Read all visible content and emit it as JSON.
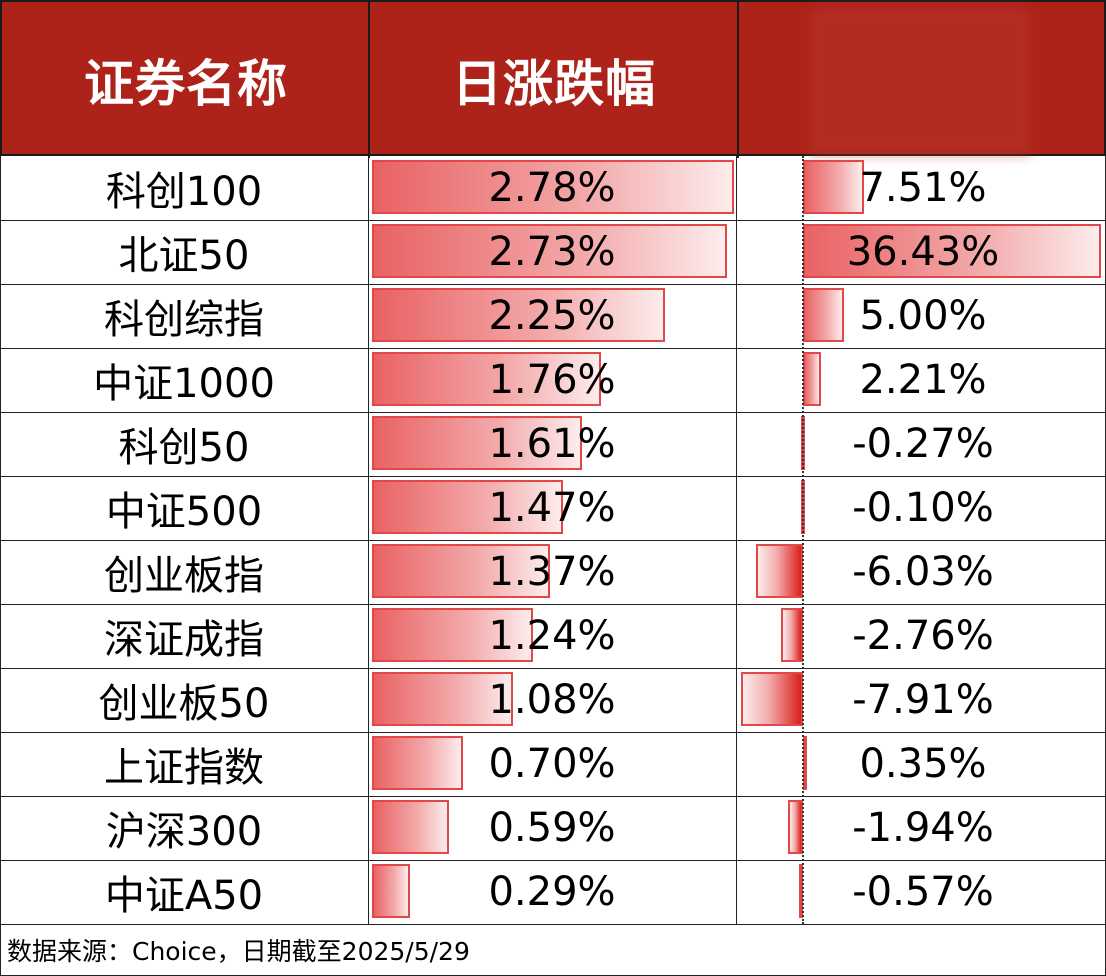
{
  "header": {
    "col1": "证券名称",
    "col2": "日涨跌幅",
    "col3": ""
  },
  "footer": {
    "source": "数据来源：Choice，日期截至2025/5/29"
  },
  "colors": {
    "header_bg": "#ad2219",
    "bar_pos": "#e96264",
    "bar_neg": "#d9201a"
  },
  "chart_data": {
    "type": "table",
    "columns": [
      "证券名称",
      "日涨跌幅",
      ""
    ],
    "rows": [
      {
        "name": "科创100",
        "daily": 2.78,
        "daily_label": "2.78%",
        "other": 7.51,
        "other_label": "7.51%"
      },
      {
        "name": "北证50",
        "daily": 2.73,
        "daily_label": "2.73%",
        "other": 36.43,
        "other_label": "36.43%"
      },
      {
        "name": "科创综指",
        "daily": 2.25,
        "daily_label": "2.25%",
        "other": 5.0,
        "other_label": "5.00%"
      },
      {
        "name": "中证1000",
        "daily": 1.76,
        "daily_label": "1.76%",
        "other": 2.21,
        "other_label": "2.21%"
      },
      {
        "name": "科创50",
        "daily": 1.61,
        "daily_label": "1.61%",
        "other": -0.27,
        "other_label": "-0.27%"
      },
      {
        "name": "中证500",
        "daily": 1.47,
        "daily_label": "1.47%",
        "other": -0.1,
        "other_label": "-0.10%"
      },
      {
        "name": "创业板指",
        "daily": 1.37,
        "daily_label": "1.37%",
        "other": -6.03,
        "other_label": "-6.03%"
      },
      {
        "name": "深证成指",
        "daily": 1.24,
        "daily_label": "1.24%",
        "other": -2.76,
        "other_label": "-2.76%"
      },
      {
        "name": "创业板50",
        "daily": 1.08,
        "daily_label": "1.08%",
        "other": -7.91,
        "other_label": "-7.91%"
      },
      {
        "name": "上证指数",
        "daily": 0.7,
        "daily_label": "0.70%",
        "other": 0.35,
        "other_label": "0.35%"
      },
      {
        "name": "沪深300",
        "daily": 0.59,
        "daily_label": "0.59%",
        "other": -1.94,
        "other_label": "-1.94%"
      },
      {
        "name": "中证A50",
        "daily": 0.29,
        "daily_label": "0.29%",
        "other": -0.57,
        "other_label": "-0.57%"
      }
    ]
  }
}
